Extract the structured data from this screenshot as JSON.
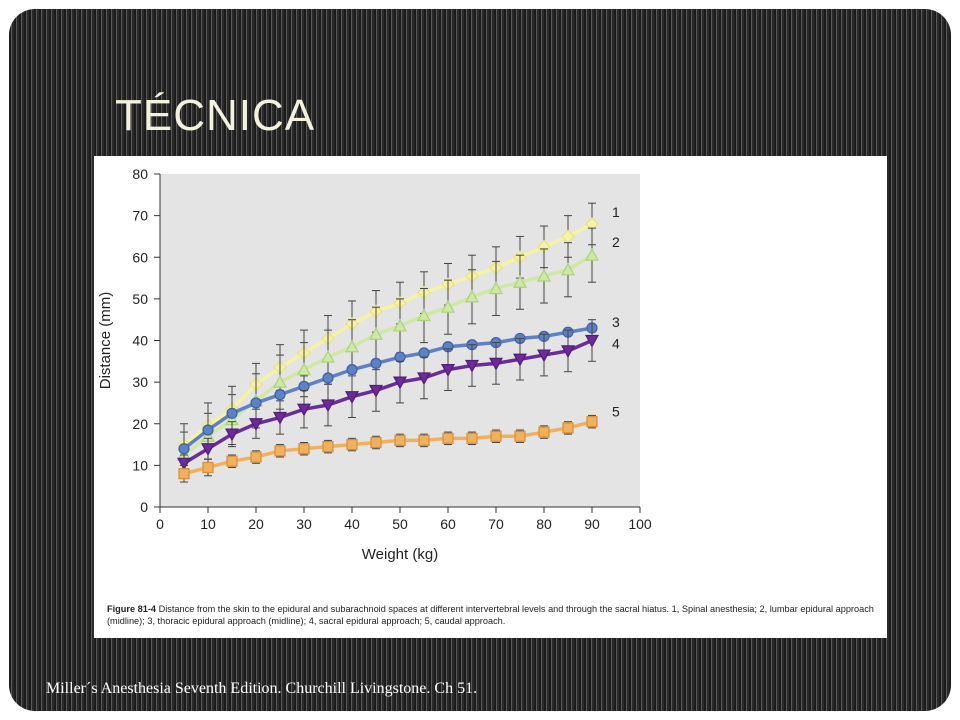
{
  "slide": {
    "title": "TÉCNICA",
    "citation": "Miller´s Anesthesia Seventh Edition. Churchill Livingstone. Ch 51.",
    "colors": {
      "text": "#f4f1de",
      "stripe_dark": "#1c1c1c",
      "stripe_light": "#5a5a5a"
    }
  },
  "figure": {
    "caption_label": "Figure 81-4",
    "caption_text": " Distance from the skin to the epidural and subarachnoid spaces at different intervertebral levels and through the sacral hiatus. 1, Spinal anesthesia; 2, lumbar epidural approach (midline); 3, thoracic epidural approach (midline); 4, sacral epidural approach; 5, caudal approach."
  },
  "chart_data": {
    "type": "line",
    "xlabel": "Weight (kg)",
    "ylabel": "Distance (mm)",
    "xlim": [
      0,
      100
    ],
    "ylim": [
      0,
      80
    ],
    "x_ticks": [
      0,
      10,
      20,
      30,
      40,
      50,
      60,
      70,
      80,
      90,
      100
    ],
    "y_ticks": [
      0,
      10,
      20,
      30,
      40,
      50,
      60,
      70,
      80
    ],
    "grid": false,
    "background": "#e4e4e4",
    "x": [
      5,
      10,
      15,
      20,
      25,
      30,
      35,
      40,
      45,
      50,
      55,
      60,
      65,
      70,
      75,
      80,
      85,
      90
    ],
    "series": [
      {
        "name": "1",
        "marker": "diamond",
        "color": "#f6f3a4",
        "edge": "#e9e280",
        "values": [
          15,
          19.5,
          23.5,
          29.5,
          33.5,
          37,
          40.5,
          44,
          47,
          49,
          51.5,
          53.5,
          55.5,
          57.5,
          60,
          62.5,
          65,
          68
        ],
        "err": [
          5,
          5.5,
          5.5,
          5,
          5.5,
          5.5,
          5.5,
          5.5,
          5,
          5,
          5,
          5,
          5,
          5,
          5,
          5,
          5,
          5
        ]
      },
      {
        "name": "2",
        "marker": "triangle-up",
        "color": "#cfe9a4",
        "edge": "#a9d27a",
        "values": [
          12.5,
          17,
          21,
          25.5,
          30,
          33,
          36,
          38.5,
          41.5,
          43.5,
          46,
          48,
          50.5,
          52.5,
          54,
          55.5,
          57,
          60.5
        ],
        "err": [
          5.5,
          5.5,
          6,
          6.5,
          6.5,
          6.5,
          6.5,
          6.5,
          6.5,
          6.5,
          6.5,
          6.5,
          6.5,
          6.5,
          6.5,
          6.5,
          6.5,
          6.5
        ]
      },
      {
        "name": "3",
        "marker": "circle",
        "color": "#5e80c4",
        "edge": "#3e5fa5",
        "values": [
          14,
          18.5,
          22.5,
          25,
          27,
          29,
          31,
          33,
          34.5,
          36,
          37,
          38.5,
          39,
          39.5,
          40.5,
          41,
          42,
          43
        ],
        "err": [
          0,
          0,
          0,
          0,
          0,
          0,
          0,
          0,
          0,
          0,
          0,
          0,
          0,
          0,
          0,
          0,
          0,
          0
        ]
      },
      {
        "name": "4",
        "marker": "triangle-down",
        "color": "#6b2b98",
        "edge": "#511d77",
        "values": [
          10.5,
          14,
          17.5,
          20,
          21.5,
          23.5,
          24.5,
          26.5,
          28,
          30,
          31,
          33,
          34,
          34.5,
          35.5,
          36.5,
          37.5,
          40
        ],
        "err": [
          2,
          2.5,
          3,
          3.5,
          4,
          4.5,
          5,
          5,
          5,
          5,
          5,
          5,
          5,
          5,
          5,
          5,
          5,
          5
        ]
      },
      {
        "name": "5",
        "marker": "square",
        "color": "#f0b05e",
        "edge": "#d98e32",
        "values": [
          8,
          9.5,
          11,
          12,
          13.5,
          14,
          14.5,
          15,
          15.5,
          16,
          16,
          16.5,
          16.5,
          17,
          17,
          18,
          19,
          20.5
        ],
        "err": [
          2,
          2,
          1.5,
          1.5,
          1.5,
          1.5,
          1.5,
          1.5,
          1.5,
          1.5,
          1.5,
          1.5,
          1.5,
          1.5,
          1.5,
          1.5,
          1.5,
          1.5
        ]
      }
    ]
  }
}
